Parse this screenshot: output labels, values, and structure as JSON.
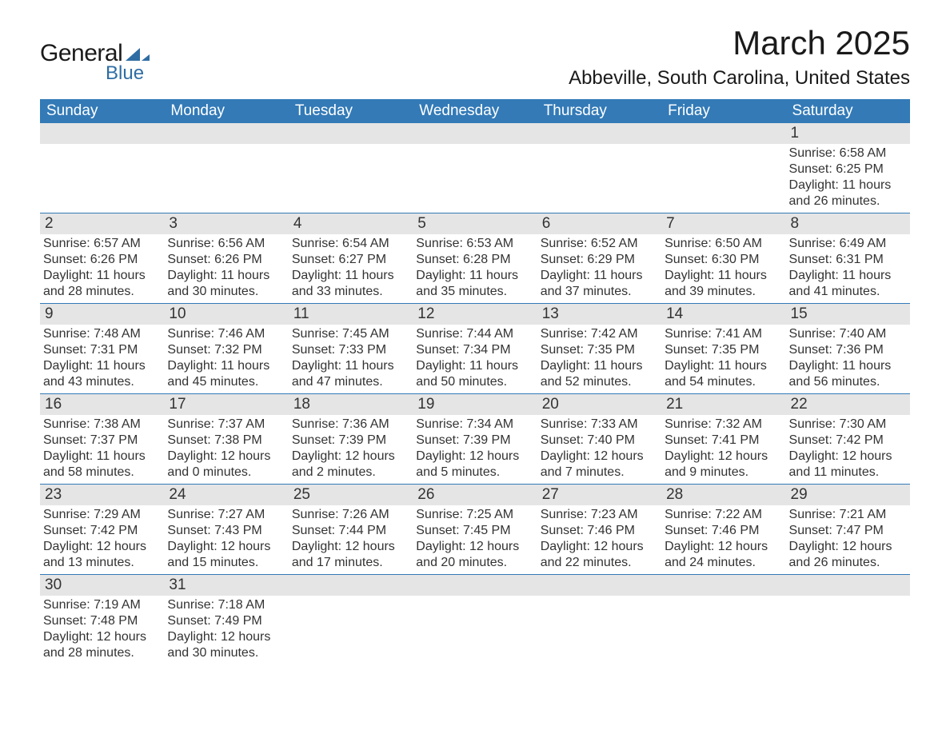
{
  "logo": {
    "text_general": "General",
    "text_blue": "Blue",
    "shape_color": "#2e6da4",
    "text_general_color": "#1a1a1a"
  },
  "header": {
    "month_title": "March 2025",
    "location": "Abbeville, South Carolina, United States"
  },
  "colors": {
    "header_bg": "#337ab7",
    "header_text": "#ffffff",
    "day_bar_bg": "#e5e5e5",
    "row_border": "#337ab7",
    "body_text": "#333333",
    "background": "#ffffff"
  },
  "weekdays": [
    "Sunday",
    "Monday",
    "Tuesday",
    "Wednesday",
    "Thursday",
    "Friday",
    "Saturday"
  ],
  "weeks": [
    [
      {
        "day": "",
        "sunrise": "",
        "sunset": "",
        "daylight1": "",
        "daylight2": ""
      },
      {
        "day": "",
        "sunrise": "",
        "sunset": "",
        "daylight1": "",
        "daylight2": ""
      },
      {
        "day": "",
        "sunrise": "",
        "sunset": "",
        "daylight1": "",
        "daylight2": ""
      },
      {
        "day": "",
        "sunrise": "",
        "sunset": "",
        "daylight1": "",
        "daylight2": ""
      },
      {
        "day": "",
        "sunrise": "",
        "sunset": "",
        "daylight1": "",
        "daylight2": ""
      },
      {
        "day": "",
        "sunrise": "",
        "sunset": "",
        "daylight1": "",
        "daylight2": ""
      },
      {
        "day": "1",
        "sunrise": "Sunrise: 6:58 AM",
        "sunset": "Sunset: 6:25 PM",
        "daylight1": "Daylight: 11 hours",
        "daylight2": "and 26 minutes."
      }
    ],
    [
      {
        "day": "2",
        "sunrise": "Sunrise: 6:57 AM",
        "sunset": "Sunset: 6:26 PM",
        "daylight1": "Daylight: 11 hours",
        "daylight2": "and 28 minutes."
      },
      {
        "day": "3",
        "sunrise": "Sunrise: 6:56 AM",
        "sunset": "Sunset: 6:26 PM",
        "daylight1": "Daylight: 11 hours",
        "daylight2": "and 30 minutes."
      },
      {
        "day": "4",
        "sunrise": "Sunrise: 6:54 AM",
        "sunset": "Sunset: 6:27 PM",
        "daylight1": "Daylight: 11 hours",
        "daylight2": "and 33 minutes."
      },
      {
        "day": "5",
        "sunrise": "Sunrise: 6:53 AM",
        "sunset": "Sunset: 6:28 PM",
        "daylight1": "Daylight: 11 hours",
        "daylight2": "and 35 minutes."
      },
      {
        "day": "6",
        "sunrise": "Sunrise: 6:52 AM",
        "sunset": "Sunset: 6:29 PM",
        "daylight1": "Daylight: 11 hours",
        "daylight2": "and 37 minutes."
      },
      {
        "day": "7",
        "sunrise": "Sunrise: 6:50 AM",
        "sunset": "Sunset: 6:30 PM",
        "daylight1": "Daylight: 11 hours",
        "daylight2": "and 39 minutes."
      },
      {
        "day": "8",
        "sunrise": "Sunrise: 6:49 AM",
        "sunset": "Sunset: 6:31 PM",
        "daylight1": "Daylight: 11 hours",
        "daylight2": "and 41 minutes."
      }
    ],
    [
      {
        "day": "9",
        "sunrise": "Sunrise: 7:48 AM",
        "sunset": "Sunset: 7:31 PM",
        "daylight1": "Daylight: 11 hours",
        "daylight2": "and 43 minutes."
      },
      {
        "day": "10",
        "sunrise": "Sunrise: 7:46 AM",
        "sunset": "Sunset: 7:32 PM",
        "daylight1": "Daylight: 11 hours",
        "daylight2": "and 45 minutes."
      },
      {
        "day": "11",
        "sunrise": "Sunrise: 7:45 AM",
        "sunset": "Sunset: 7:33 PM",
        "daylight1": "Daylight: 11 hours",
        "daylight2": "and 47 minutes."
      },
      {
        "day": "12",
        "sunrise": "Sunrise: 7:44 AM",
        "sunset": "Sunset: 7:34 PM",
        "daylight1": "Daylight: 11 hours",
        "daylight2": "and 50 minutes."
      },
      {
        "day": "13",
        "sunrise": "Sunrise: 7:42 AM",
        "sunset": "Sunset: 7:35 PM",
        "daylight1": "Daylight: 11 hours",
        "daylight2": "and 52 minutes."
      },
      {
        "day": "14",
        "sunrise": "Sunrise: 7:41 AM",
        "sunset": "Sunset: 7:35 PM",
        "daylight1": "Daylight: 11 hours",
        "daylight2": "and 54 minutes."
      },
      {
        "day": "15",
        "sunrise": "Sunrise: 7:40 AM",
        "sunset": "Sunset: 7:36 PM",
        "daylight1": "Daylight: 11 hours",
        "daylight2": "and 56 minutes."
      }
    ],
    [
      {
        "day": "16",
        "sunrise": "Sunrise: 7:38 AM",
        "sunset": "Sunset: 7:37 PM",
        "daylight1": "Daylight: 11 hours",
        "daylight2": "and 58 minutes."
      },
      {
        "day": "17",
        "sunrise": "Sunrise: 7:37 AM",
        "sunset": "Sunset: 7:38 PM",
        "daylight1": "Daylight: 12 hours",
        "daylight2": "and 0 minutes."
      },
      {
        "day": "18",
        "sunrise": "Sunrise: 7:36 AM",
        "sunset": "Sunset: 7:39 PM",
        "daylight1": "Daylight: 12 hours",
        "daylight2": "and 2 minutes."
      },
      {
        "day": "19",
        "sunrise": "Sunrise: 7:34 AM",
        "sunset": "Sunset: 7:39 PM",
        "daylight1": "Daylight: 12 hours",
        "daylight2": "and 5 minutes."
      },
      {
        "day": "20",
        "sunrise": "Sunrise: 7:33 AM",
        "sunset": "Sunset: 7:40 PM",
        "daylight1": "Daylight: 12 hours",
        "daylight2": "and 7 minutes."
      },
      {
        "day": "21",
        "sunrise": "Sunrise: 7:32 AM",
        "sunset": "Sunset: 7:41 PM",
        "daylight1": "Daylight: 12 hours",
        "daylight2": "and 9 minutes."
      },
      {
        "day": "22",
        "sunrise": "Sunrise: 7:30 AM",
        "sunset": "Sunset: 7:42 PM",
        "daylight1": "Daylight: 12 hours",
        "daylight2": "and 11 minutes."
      }
    ],
    [
      {
        "day": "23",
        "sunrise": "Sunrise: 7:29 AM",
        "sunset": "Sunset: 7:42 PM",
        "daylight1": "Daylight: 12 hours",
        "daylight2": "and 13 minutes."
      },
      {
        "day": "24",
        "sunrise": "Sunrise: 7:27 AM",
        "sunset": "Sunset: 7:43 PM",
        "daylight1": "Daylight: 12 hours",
        "daylight2": "and 15 minutes."
      },
      {
        "day": "25",
        "sunrise": "Sunrise: 7:26 AM",
        "sunset": "Sunset: 7:44 PM",
        "daylight1": "Daylight: 12 hours",
        "daylight2": "and 17 minutes."
      },
      {
        "day": "26",
        "sunrise": "Sunrise: 7:25 AM",
        "sunset": "Sunset: 7:45 PM",
        "daylight1": "Daylight: 12 hours",
        "daylight2": "and 20 minutes."
      },
      {
        "day": "27",
        "sunrise": "Sunrise: 7:23 AM",
        "sunset": "Sunset: 7:46 PM",
        "daylight1": "Daylight: 12 hours",
        "daylight2": "and 22 minutes."
      },
      {
        "day": "28",
        "sunrise": "Sunrise: 7:22 AM",
        "sunset": "Sunset: 7:46 PM",
        "daylight1": "Daylight: 12 hours",
        "daylight2": "and 24 minutes."
      },
      {
        "day": "29",
        "sunrise": "Sunrise: 7:21 AM",
        "sunset": "Sunset: 7:47 PM",
        "daylight1": "Daylight: 12 hours",
        "daylight2": "and 26 minutes."
      }
    ],
    [
      {
        "day": "30",
        "sunrise": "Sunrise: 7:19 AM",
        "sunset": "Sunset: 7:48 PM",
        "daylight1": "Daylight: 12 hours",
        "daylight2": "and 28 minutes."
      },
      {
        "day": "31",
        "sunrise": "Sunrise: 7:18 AM",
        "sunset": "Sunset: 7:49 PM",
        "daylight1": "Daylight: 12 hours",
        "daylight2": "and 30 minutes."
      },
      {
        "day": "",
        "sunrise": "",
        "sunset": "",
        "daylight1": "",
        "daylight2": ""
      },
      {
        "day": "",
        "sunrise": "",
        "sunset": "",
        "daylight1": "",
        "daylight2": ""
      },
      {
        "day": "",
        "sunrise": "",
        "sunset": "",
        "daylight1": "",
        "daylight2": ""
      },
      {
        "day": "",
        "sunrise": "",
        "sunset": "",
        "daylight1": "",
        "daylight2": ""
      },
      {
        "day": "",
        "sunrise": "",
        "sunset": "",
        "daylight1": "",
        "daylight2": ""
      }
    ]
  ]
}
